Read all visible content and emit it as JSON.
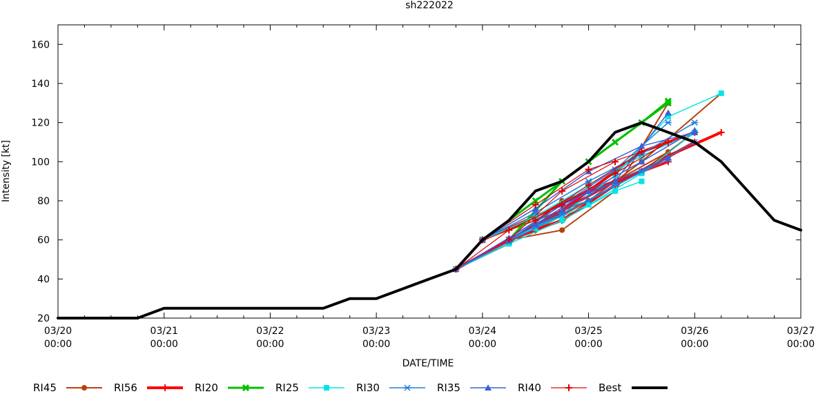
{
  "chart_data": {
    "type": "line",
    "title": "sh222022",
    "xlabel": "DATE/TIME",
    "ylabel": "Intensity [kt]",
    "ylim": [
      20,
      170
    ],
    "yticks": [
      20,
      40,
      60,
      80,
      100,
      120,
      140,
      160
    ],
    "x_unit": "hours since 03/20 00:00",
    "xlim": [
      0,
      168
    ],
    "xticks": [
      {
        "hour": 0,
        "date": "03/20",
        "time": "00:00"
      },
      {
        "hour": 24,
        "date": "03/21",
        "time": "00:00"
      },
      {
        "hour": 48,
        "date": "03/22",
        "time": "00:00"
      },
      {
        "hour": 72,
        "date": "03/23",
        "time": "00:00"
      },
      {
        "hour": 96,
        "date": "03/24",
        "time": "00:00"
      },
      {
        "hour": 120,
        "date": "03/25",
        "time": "00:00"
      },
      {
        "hour": 144,
        "date": "03/26",
        "time": "00:00"
      },
      {
        "hour": 168,
        "date": "03/27",
        "time": "00:00"
      }
    ],
    "legend_position": "bottom",
    "series": [
      {
        "name": "RI45",
        "color": "#b5420c",
        "width": 2,
        "marker": "circle",
        "lines": [
          [
            [
              90,
              45
            ],
            [
              102,
              58
            ],
            [
              114,
              80
            ],
            [
              126,
              90
            ],
            [
              138,
              105
            ]
          ],
          [
            [
              96,
              60
            ],
            [
              108,
              70
            ],
            [
              120,
              80
            ],
            [
              132,
              95
            ],
            [
              144,
              115
            ]
          ],
          [
            [
              102,
              60
            ],
            [
              114,
              65
            ],
            [
              126,
              85
            ],
            [
              138,
              130
            ]
          ],
          [
            [
              108,
              65
            ],
            [
              120,
              80
            ],
            [
              132,
              100
            ],
            [
              150,
              135
            ]
          ]
        ]
      },
      {
        "name": "RI56",
        "color": "#ff0000",
        "width": 4,
        "marker": "plus",
        "lines": [
          [
            [
              90,
              45
            ],
            [
              102,
              60
            ],
            [
              114,
              75
            ],
            [
              126,
              90
            ],
            [
              138,
              100
            ]
          ],
          [
            [
              96,
              60
            ],
            [
              108,
              72
            ],
            [
              120,
              85
            ],
            [
              132,
              95
            ],
            [
              144,
              110
            ]
          ],
          [
            [
              102,
              60
            ],
            [
              114,
              70
            ],
            [
              126,
              88
            ],
            [
              138,
              103
            ],
            [
              150,
              115
            ]
          ],
          [
            [
              108,
              65
            ],
            [
              120,
              85
            ],
            [
              132,
              105
            ],
            [
              144,
              115
            ]
          ]
        ]
      },
      {
        "name": "RI20",
        "color": "#00c000",
        "width": 3,
        "marker": "x",
        "lines": [
          [
            [
              96,
              60
            ],
            [
              108,
              80
            ],
            [
              120,
              100
            ],
            [
              132,
              120
            ],
            [
              138,
              131
            ]
          ],
          [
            [
              102,
              60
            ],
            [
              114,
              90
            ],
            [
              126,
              110
            ],
            [
              138,
              130
            ]
          ]
        ]
      },
      {
        "name": "RI25",
        "color": "#00e5e5",
        "width": 1.5,
        "marker": "square",
        "lines": [
          [
            [
              90,
              45
            ],
            [
              102,
              58
            ],
            [
              114,
              70
            ],
            [
              126,
              85
            ],
            [
              132,
              90
            ]
          ],
          [
            [
              96,
              60
            ],
            [
              108,
              72
            ],
            [
              120,
              88
            ],
            [
              132,
              103
            ],
            [
              144,
              115
            ]
          ],
          [
            [
              102,
              60
            ],
            [
              114,
              73
            ],
            [
              126,
              93
            ],
            [
              138,
              123
            ],
            [
              150,
              135
            ]
          ],
          [
            [
              108,
              66
            ],
            [
              120,
              78
            ],
            [
              132,
              94
            ],
            [
              144,
              115
            ]
          ]
        ]
      },
      {
        "name": "RI30",
        "color": "#1f7fe0",
        "width": 1.5,
        "marker": "asterisk",
        "lines": [
          [
            [
              90,
              45
            ],
            [
              102,
              59
            ],
            [
              114,
              73
            ],
            [
              126,
              88
            ],
            [
              138,
              101
            ]
          ],
          [
            [
              96,
              60
            ],
            [
              108,
              74
            ],
            [
              120,
              90
            ],
            [
              132,
              104
            ],
            [
              144,
              120
            ]
          ],
          [
            [
              102,
              60
            ],
            [
              114,
              78
            ],
            [
              126,
              96
            ],
            [
              138,
              120
            ]
          ],
          [
            [
              108,
              67
            ],
            [
              120,
              80
            ],
            [
              132,
              95
            ],
            [
              144,
              110
            ]
          ]
        ]
      },
      {
        "name": "RI35",
        "color": "#3b5fd8",
        "width": 1.5,
        "marker": "triangle",
        "lines": [
          [
            [
              90,
              45
            ],
            [
              102,
              61
            ],
            [
              114,
              78
            ],
            [
              126,
              90
            ],
            [
              138,
              102
            ]
          ],
          [
            [
              96,
              60
            ],
            [
              108,
              76
            ],
            [
              120,
              95
            ],
            [
              132,
              108
            ],
            [
              144,
              115
            ]
          ],
          [
            [
              102,
              60
            ],
            [
              114,
              75
            ],
            [
              126,
              90
            ],
            [
              138,
              125
            ]
          ],
          [
            [
              108,
              68
            ],
            [
              120,
              85
            ],
            [
              132,
              100
            ],
            [
              144,
              116
            ]
          ]
        ]
      },
      {
        "name": "RI40",
        "color": "#dd0000",
        "width": 1.2,
        "marker": "plus",
        "lines": [
          [
            [
              90,
              45
            ],
            [
              102,
              65
            ],
            [
              114,
              78
            ],
            [
              126,
              94
            ],
            [
              138,
              110
            ]
          ],
          [
            [
              96,
              60
            ],
            [
              108,
              78
            ],
            [
              120,
              96
            ],
            [
              132,
              105
            ]
          ],
          [
            [
              102,
              60
            ],
            [
              114,
              85
            ],
            [
              126,
              100
            ]
          ],
          [
            [
              108,
              70
            ],
            [
              120,
              88
            ],
            [
              132,
              105
            ]
          ]
        ]
      },
      {
        "name": "Best",
        "color": "#000000",
        "width": 4,
        "marker": "none",
        "points": [
          [
            0,
            20
          ],
          [
            18,
            20
          ],
          [
            24,
            25
          ],
          [
            30,
            25
          ],
          [
            36,
            25
          ],
          [
            42,
            25
          ],
          [
            48,
            25
          ],
          [
            54,
            25
          ],
          [
            60,
            25
          ],
          [
            66,
            30
          ],
          [
            72,
            30
          ],
          [
            78,
            35
          ],
          [
            84,
            40
          ],
          [
            90,
            45
          ],
          [
            96,
            60
          ],
          [
            102,
            70
          ],
          [
            108,
            85
          ],
          [
            114,
            90
          ],
          [
            120,
            100
          ],
          [
            126,
            115
          ],
          [
            132,
            120
          ],
          [
            138,
            115
          ],
          [
            144,
            110
          ],
          [
            150,
            100
          ],
          [
            156,
            85
          ],
          [
            162,
            70
          ],
          [
            168,
            65
          ]
        ]
      }
    ]
  }
}
